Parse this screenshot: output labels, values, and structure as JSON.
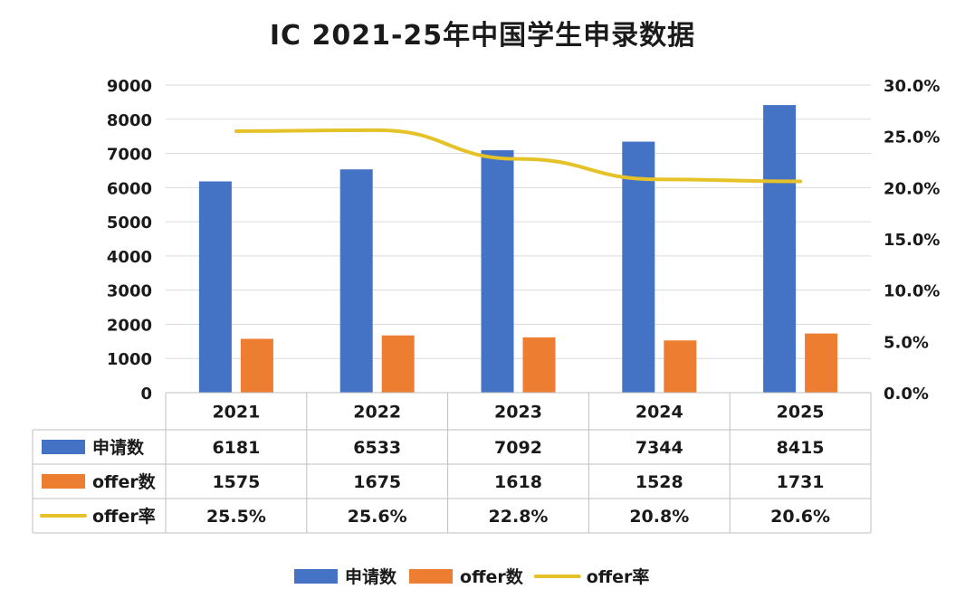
{
  "chart_data": {
    "type": "bar",
    "title": "IC 2021-25年中国学生申录数据",
    "categories": [
      "2021",
      "2022",
      "2023",
      "2024",
      "2025"
    ],
    "series": [
      {
        "name": "申请数",
        "kind": "bar",
        "axis": "left",
        "color": "#4472C4",
        "values": [
          6181,
          6533,
          7092,
          7344,
          8415
        ]
      },
      {
        "name": "offer数",
        "kind": "bar",
        "axis": "left",
        "color": "#ED7D31",
        "values": [
          1575,
          1675,
          1618,
          1528,
          1731
        ]
      },
      {
        "name": "offer率",
        "kind": "line",
        "axis": "right",
        "color": "#E6C229",
        "values": [
          25.5,
          25.6,
          22.8,
          20.8,
          20.6
        ]
      }
    ],
    "table_rows": [
      {
        "label": "申请数",
        "cells": [
          "6181",
          "6533",
          "7092",
          "7344",
          "8415"
        ]
      },
      {
        "label": "offer数",
        "cells": [
          "1575",
          "1675",
          "1618",
          "1528",
          "1731"
        ]
      },
      {
        "label": "offer率",
        "cells": [
          "25.5%",
          "25.6%",
          "22.8%",
          "20.8%",
          "20.6%"
        ]
      }
    ],
    "y_left": {
      "ylim": [
        0,
        9000
      ],
      "ticks": [
        "0",
        "1000",
        "2000",
        "3000",
        "4000",
        "5000",
        "6000",
        "7000",
        "8000",
        "9000"
      ]
    },
    "y_right": {
      "ylim": [
        0,
        30
      ],
      "ticks": [
        "0.0%",
        "5.0%",
        "10.0%",
        "15.0%",
        "20.0%",
        "25.0%",
        "30.0%"
      ]
    },
    "grid": true,
    "legend_position": "bottom"
  }
}
